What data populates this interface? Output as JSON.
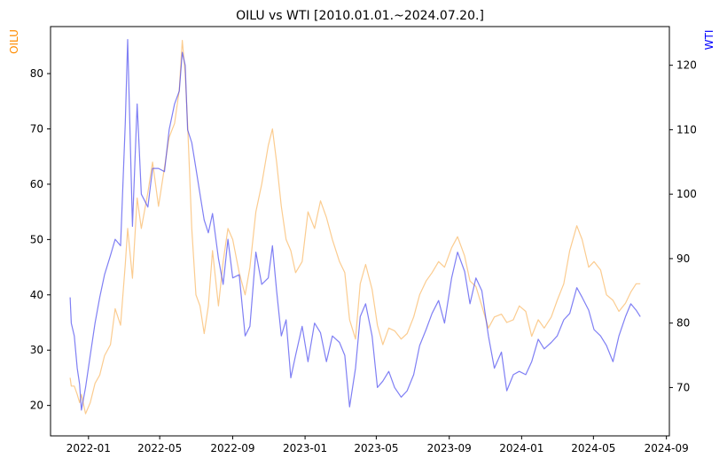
{
  "chart_data": {
    "type": "line",
    "title": "OILU vs WTI [2010.01.01.~2024.07.20.]",
    "xlim": [
      "2021-10-29",
      "2024-09-06"
    ],
    "x_ticks": [
      "2022-01",
      "2022-05",
      "2022-09",
      "2023-01",
      "2023-05",
      "2023-09",
      "2024-01",
      "2024-05",
      "2024-09"
    ],
    "left_axis": {
      "label": "OILU",
      "color": "#ff8c00",
      "ylim": [
        14.5,
        88.5
      ],
      "ticks": [
        20,
        30,
        40,
        50,
        60,
        70,
        80
      ]
    },
    "right_axis": {
      "label": "WTI",
      "color": "#0000ff",
      "ylim": [
        62.5,
        126.0
      ],
      "ticks": [
        70,
        80,
        90,
        100,
        110,
        120
      ]
    },
    "grid": false,
    "series": [
      {
        "name": "OILU",
        "axis": "left",
        "color": "#f7a234",
        "opacity": 0.55,
        "x": [
          "2021-12-01",
          "2021-12-03",
          "2021-12-08",
          "2021-12-13",
          "2021-12-17",
          "2021-12-20",
          "2021-12-27",
          "2022-01-04",
          "2022-01-12",
          "2022-01-20",
          "2022-01-28",
          "2022-02-07",
          "2022-02-15",
          "2022-02-24",
          "2022-03-04",
          "2022-03-08",
          "2022-03-16",
          "2022-03-24",
          "2022-03-31",
          "2022-04-11",
          "2022-04-19",
          "2022-04-29",
          "2022-05-09",
          "2022-05-17",
          "2022-05-26",
          "2022-06-03",
          "2022-06-08",
          "2022-06-13",
          "2022-06-17",
          "2022-06-24",
          "2022-07-01",
          "2022-07-08",
          "2022-07-15",
          "2022-07-22",
          "2022-07-29",
          "2022-08-08",
          "2022-08-16",
          "2022-08-24",
          "2022-09-01",
          "2022-09-12",
          "2022-09-22",
          "2022-09-30",
          "2022-10-10",
          "2022-10-20",
          "2022-10-31",
          "2022-11-07",
          "2022-11-14",
          "2022-11-22",
          "2022-11-30",
          "2022-12-08",
          "2022-12-16",
          "2022-12-27",
          "2023-01-06",
          "2023-01-17",
          "2023-01-27",
          "2023-02-06",
          "2023-02-16",
          "2023-02-28",
          "2023-03-09",
          "2023-03-17",
          "2023-03-27",
          "2023-04-04",
          "2023-04-13",
          "2023-04-24",
          "2023-05-03",
          "2023-05-12",
          "2023-05-22",
          "2023-06-01",
          "2023-06-12",
          "2023-06-22",
          "2023-07-03",
          "2023-07-13",
          "2023-07-24",
          "2023-08-03",
          "2023-08-14",
          "2023-08-24",
          "2023-09-05",
          "2023-09-15",
          "2023-09-27",
          "2023-10-06",
          "2023-10-16",
          "2023-10-26",
          "2023-11-06",
          "2023-11-16",
          "2023-11-28",
          "2023-12-07",
          "2023-12-18",
          "2023-12-28",
          "2024-01-08",
          "2024-01-18",
          "2024-01-29",
          "2024-02-08",
          "2024-02-20",
          "2024-03-01",
          "2024-03-12",
          "2024-03-22",
          "2024-04-03",
          "2024-04-12",
          "2024-04-23",
          "2024-05-02",
          "2024-05-13",
          "2024-05-23",
          "2024-06-03",
          "2024-06-13",
          "2024-06-24",
          "2024-07-03",
          "2024-07-12",
          "2024-07-19"
        ],
        "values": [
          25.0,
          23.5,
          23.5,
          22.0,
          20.5,
          22.0,
          18.5,
          20.5,
          24.0,
          25.5,
          29.0,
          31.0,
          37.5,
          34.5,
          45.5,
          52.0,
          43.0,
          57.5,
          52.0,
          58.5,
          64.0,
          56.0,
          63.0,
          68.5,
          71.0,
          77.0,
          86.0,
          80.0,
          71.0,
          52.0,
          40.0,
          38.0,
          33.0,
          38.0,
          48.0,
          38.0,
          46.0,
          52.0,
          50.0,
          44.0,
          40.0,
          45.0,
          55.0,
          60.0,
          67.0,
          70.0,
          64.0,
          56.0,
          50.0,
          48.0,
          44.0,
          46.0,
          55.0,
          52.0,
          57.0,
          54.0,
          50.0,
          46.0,
          44.0,
          35.5,
          32.0,
          42.0,
          45.5,
          41.0,
          34.5,
          31.0,
          34.0,
          33.5,
          32.0,
          33.0,
          36.0,
          40.0,
          42.5,
          44.0,
          46.0,
          45.0,
          48.5,
          50.5,
          47.0,
          42.5,
          41.5,
          38.0,
          34.0,
          36.0,
          36.5,
          35.0,
          35.5,
          38.0,
          37.0,
          32.5,
          35.5,
          34.0,
          36.0,
          39.0,
          42.0,
          48.0,
          52.5,
          50.0,
          45.0,
          46.0,
          44.5,
          40.0,
          39.0,
          37.0,
          38.5,
          40.5,
          42.0,
          42.0
        ]
      },
      {
        "name": "WTI",
        "axis": "right",
        "color": "#3a3aee",
        "opacity": 0.65,
        "x": [
          "2021-12-01",
          "2021-12-03",
          "2021-12-08",
          "2021-12-13",
          "2021-12-17",
          "2021-12-20",
          "2021-12-27",
          "2022-01-04",
          "2022-01-12",
          "2022-01-20",
          "2022-01-28",
          "2022-02-07",
          "2022-02-15",
          "2022-02-24",
          "2022-03-04",
          "2022-03-08",
          "2022-03-16",
          "2022-03-24",
          "2022-03-31",
          "2022-04-11",
          "2022-04-19",
          "2022-04-29",
          "2022-05-09",
          "2022-05-17",
          "2022-05-26",
          "2022-06-03",
          "2022-06-08",
          "2022-06-13",
          "2022-06-17",
          "2022-06-24",
          "2022-07-01",
          "2022-07-08",
          "2022-07-15",
          "2022-07-22",
          "2022-07-29",
          "2022-08-08",
          "2022-08-16",
          "2022-08-24",
          "2022-09-01",
          "2022-09-12",
          "2022-09-22",
          "2022-09-30",
          "2022-10-10",
          "2022-10-20",
          "2022-10-31",
          "2022-11-07",
          "2022-11-14",
          "2022-11-22",
          "2022-11-30",
          "2022-12-08",
          "2022-12-16",
          "2022-12-27",
          "2023-01-06",
          "2023-01-17",
          "2023-01-27",
          "2023-02-06",
          "2023-02-16",
          "2023-02-28",
          "2023-03-09",
          "2023-03-17",
          "2023-03-27",
          "2023-04-04",
          "2023-04-13",
          "2023-04-24",
          "2023-05-03",
          "2023-05-12",
          "2023-05-22",
          "2023-06-01",
          "2023-06-12",
          "2023-06-22",
          "2023-07-03",
          "2023-07-13",
          "2023-07-24",
          "2023-08-03",
          "2023-08-14",
          "2023-08-24",
          "2023-09-05",
          "2023-09-15",
          "2023-09-27",
          "2023-10-06",
          "2023-10-16",
          "2023-10-26",
          "2023-11-06",
          "2023-11-16",
          "2023-11-28",
          "2023-12-07",
          "2023-12-18",
          "2023-12-28",
          "2024-01-08",
          "2024-01-18",
          "2024-01-29",
          "2024-02-08",
          "2024-02-20",
          "2024-03-01",
          "2024-03-12",
          "2024-03-22",
          "2024-04-03",
          "2024-04-12",
          "2024-04-23",
          "2024-05-02",
          "2024-05-13",
          "2024-05-23",
          "2024-06-03",
          "2024-06-13",
          "2024-06-24",
          "2024-07-03",
          "2024-07-12",
          "2024-07-19"
        ],
        "values": [
          84.0,
          80.0,
          78.0,
          73.0,
          70.5,
          66.5,
          70.0,
          75.0,
          80.0,
          84.0,
          87.5,
          90.5,
          93.0,
          92.0,
          111.0,
          124.0,
          95.0,
          114.0,
          100.0,
          98.0,
          104.0,
          104.0,
          103.5,
          110.0,
          114.0,
          116.0,
          122.0,
          120.0,
          110.0,
          108.0,
          104.0,
          100.0,
          96.0,
          94.0,
          97.0,
          90.0,
          86.0,
          93.0,
          87.0,
          87.5,
          78.0,
          79.5,
          91.0,
          86.0,
          87.0,
          92.0,
          85.0,
          78.0,
          80.5,
          71.5,
          75.0,
          79.5,
          74.0,
          80.0,
          78.5,
          74.0,
          78.0,
          77.0,
          75.0,
          67.0,
          73.0,
          81.0,
          83.0,
          78.0,
          70.0,
          71.0,
          72.5,
          70.0,
          68.5,
          69.5,
          72.0,
          76.5,
          79.0,
          81.5,
          83.5,
          80.0,
          87.0,
          91.0,
          88.0,
          83.0,
          87.0,
          85.0,
          78.0,
          73.0,
          75.5,
          69.5,
          72.0,
          72.5,
          72.0,
          74.0,
          77.5,
          76.0,
          77.0,
          78.0,
          80.5,
          81.5,
          85.5,
          84.0,
          82.0,
          79.0,
          78.0,
          76.5,
          74.0,
          78.0,
          81.0,
          83.0,
          82.0,
          81.0
        ]
      }
    ]
  }
}
